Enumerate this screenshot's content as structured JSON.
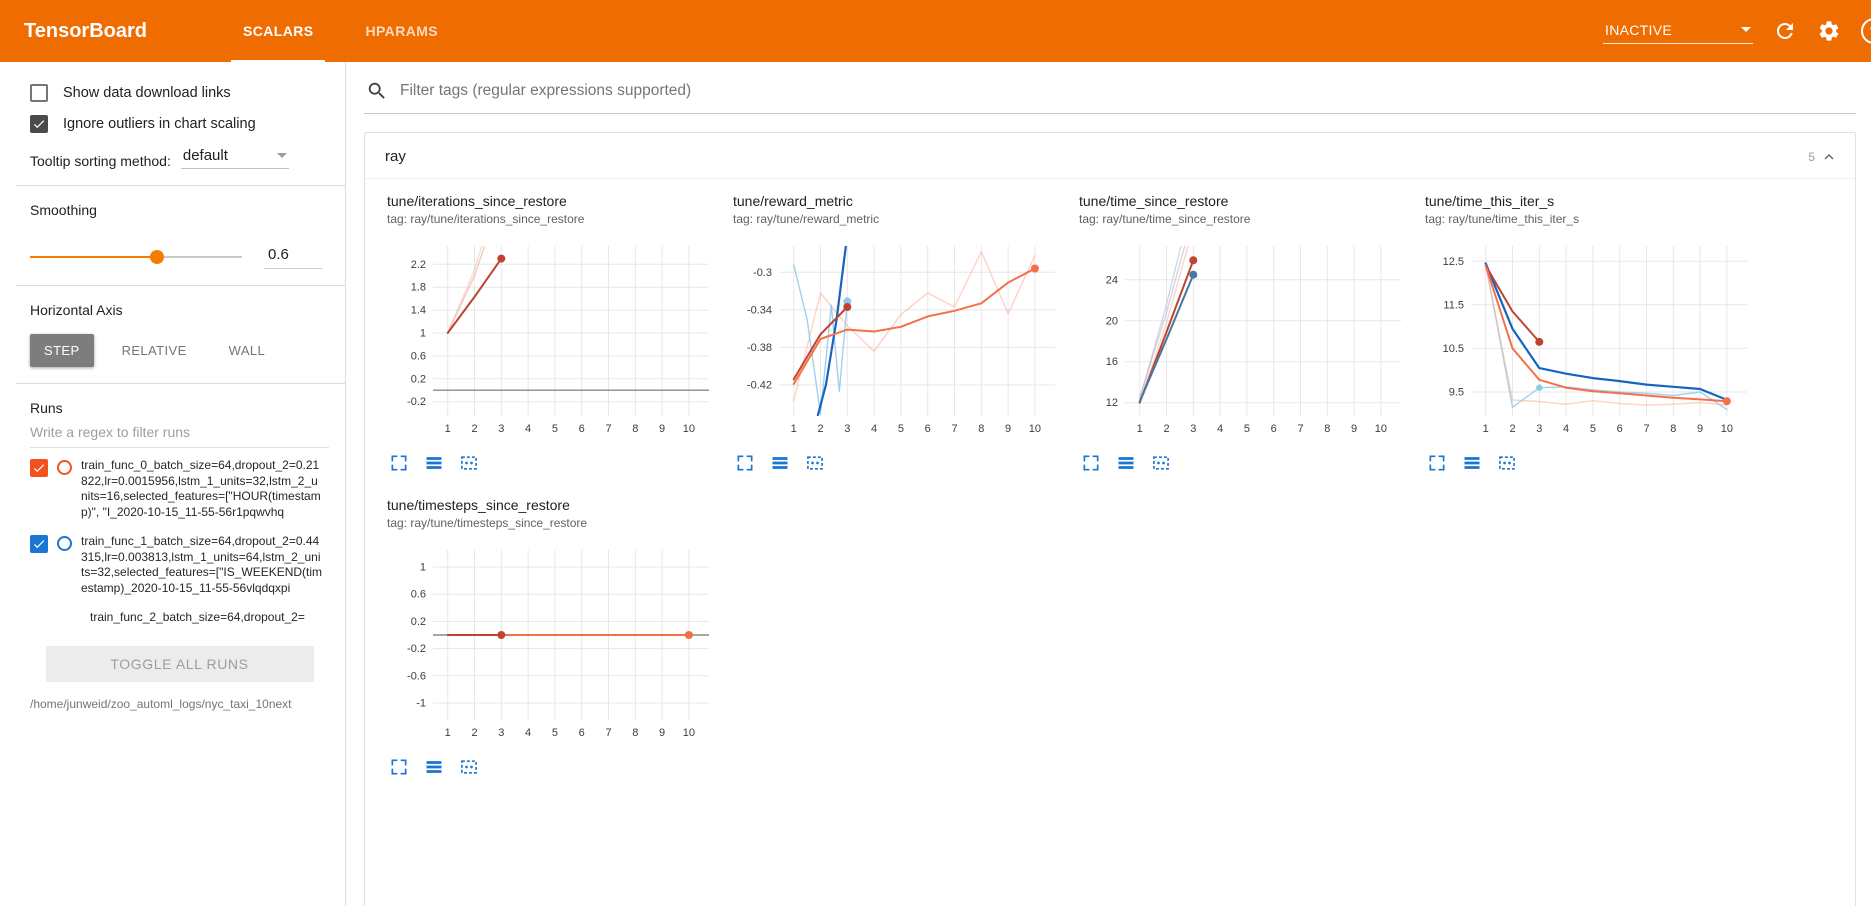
{
  "header": {
    "title": "TensorBoard",
    "tabs": [
      {
        "label": "SCALARS",
        "active": true
      },
      {
        "label": "HPARAMS",
        "active": false
      }
    ],
    "status": "INACTIVE",
    "accent_color": "#ef6c00"
  },
  "sidebar": {
    "checkboxes": [
      {
        "label": "Show data download links",
        "checked": false
      },
      {
        "label": "Ignore outliers in chart scaling",
        "checked": true
      }
    ],
    "tooltip_sorting": {
      "label": "Tooltip sorting method:",
      "value": "default"
    },
    "smoothing": {
      "label": "Smoothing",
      "value": "0.6",
      "min": 0,
      "max": 1
    },
    "horizontal_axis": {
      "label": "Horizontal Axis",
      "options": [
        "STEP",
        "RELATIVE",
        "WALL"
      ],
      "selected": "STEP"
    },
    "runs": {
      "label": "Runs",
      "filter_placeholder": "Write a regex to filter runs",
      "items": [
        {
          "label": "train_func_0_batch_size=64,dropout_2=0.21822,lr=0.0015956,lstm_1_units=32,lstm_2_units=16,selected_features=[\"HOUR(timestamp)\", \"I_2020-10-15_11-55-56r1pqwvhq",
          "checked": true,
          "color": "#f4511e"
        },
        {
          "label": "train_func_1_batch_size=64,dropout_2=0.44315,lr=0.003813,lstm_1_units=64,lstm_2_units=32,selected_features=[\"IS_WEEKEND(timestamp)_2020-10-15_11-55-56vlqdqxpi",
          "checked": true,
          "color": "#1976d2"
        },
        {
          "label": "train_func_2_batch_size=64,dropout_2=",
          "checked": null,
          "color": ""
        }
      ],
      "toggle_all_label": "TOGGLE ALL RUNS",
      "log_path": "/home/junweid/zoo_automl_logs/nyc_taxi_10next"
    }
  },
  "main": {
    "filter_placeholder": "Filter tags (regular expressions supported)",
    "group": {
      "name": "ray",
      "count": "5"
    }
  },
  "chart_data": [
    {
      "type": "line",
      "title": "tune/iterations_since_restore",
      "tag": "ray/tune/iterations_since_restore",
      "xlim": [
        0.45,
        10.75
      ],
      "ylim": [
        -0.45,
        2.52
      ],
      "xticks": [
        1,
        2,
        3,
        4,
        5,
        6,
        7,
        8,
        9,
        10
      ],
      "yticks": [
        -0.2,
        0.2,
        0.6,
        1,
        1.4,
        1.8,
        2.2
      ],
      "zero_line": true,
      "series": [
        {
          "name": "run0-raw",
          "color": "#e8a08e",
          "opacity": 0.55,
          "width": 1.4,
          "points": [
            [
              1,
              1
            ],
            [
              2,
              2
            ],
            [
              2.8,
              3.1
            ]
          ]
        },
        {
          "name": "run2-raw",
          "color": "#f2b5a0",
          "opacity": 0.5,
          "width": 1.4,
          "points": [
            [
              1,
              1
            ],
            [
              2,
              2.1
            ],
            [
              2.7,
              3.2
            ]
          ]
        },
        {
          "name": "run0-smoothed",
          "color": "#bf4430",
          "width": 2,
          "points": [
            [
              1,
              1
            ],
            [
              2,
              1.63
            ],
            [
              3,
              2.3
            ]
          ],
          "end_dot": true
        }
      ]
    },
    {
      "type": "line",
      "title": "tune/reward_metric",
      "tag": "ray/tune/reward_metric",
      "xlim": [
        0.45,
        10.75
      ],
      "ylim": [
        -0.453,
        -0.272
      ],
      "xticks": [
        1,
        2,
        3,
        4,
        5,
        6,
        7,
        8,
        9,
        10
      ],
      "yticks": [
        -0.42,
        -0.38,
        -0.34,
        -0.3
      ],
      "zero_line": false,
      "series": [
        {
          "name": "run2-raw",
          "color": "#ffab91",
          "opacity": 0.55,
          "width": 1.4,
          "points": [
            [
              1,
              -0.437
            ],
            [
              2,
              -0.322
            ],
            [
              3,
              -0.357
            ],
            [
              4,
              -0.384
            ],
            [
              5,
              -0.345
            ],
            [
              6,
              -0.322
            ],
            [
              7,
              -0.337
            ],
            [
              8,
              -0.278
            ],
            [
              9,
              -0.344
            ],
            [
              10,
              -0.282
            ]
          ]
        },
        {
          "name": "run1-raw",
          "color": "#8fc9e8",
          "opacity": 0.85,
          "width": 1.4,
          "points": [
            [
              1,
              -0.292
            ],
            [
              1.5,
              -0.35
            ],
            [
              2,
              -0.451
            ],
            [
              2.4,
              -0.335
            ],
            [
              2.7,
              -0.427
            ],
            [
              3,
              -0.331
            ]
          ],
          "end_dot": true
        },
        {
          "name": "run1-smoothed",
          "color": "#1565c0",
          "width": 2.2,
          "points": [
            [
              1.9,
              -0.452
            ],
            [
              2.2,
              -0.42
            ],
            [
              2.6,
              -0.35
            ],
            [
              3,
              -0.26
            ]
          ]
        },
        {
          "name": "run0-smoothed",
          "color": "#bf4430",
          "width": 2,
          "points": [
            [
              1,
              -0.414
            ],
            [
              2,
              -0.366
            ],
            [
              3,
              -0.337
            ]
          ],
          "end_dot": true
        },
        {
          "name": "run2-smoothed",
          "color": "#f4704b",
          "width": 2,
          "points": [
            [
              1,
              -0.419
            ],
            [
              2,
              -0.371
            ],
            [
              3,
              -0.361
            ],
            [
              4,
              -0.363
            ],
            [
              5,
              -0.358
            ],
            [
              6,
              -0.347
            ],
            [
              7,
              -0.341
            ],
            [
              8,
              -0.333
            ],
            [
              9,
              -0.311
            ],
            [
              10,
              -0.296
            ]
          ],
          "end_dot": true
        }
      ]
    },
    {
      "type": "line",
      "title": "tune/time_since_restore",
      "tag": "ray/tune/time_since_restore",
      "xlim": [
        0.45,
        10.75
      ],
      "ylim": [
        10.7,
        27.3
      ],
      "xticks": [
        1,
        2,
        3,
        4,
        5,
        6,
        7,
        8,
        9,
        10
      ],
      "yticks": [
        12,
        16,
        20,
        24
      ],
      "zero_line": false,
      "series": [
        {
          "name": "raw-a",
          "color": "#b3a8c9",
          "opacity": 0.5,
          "width": 1.4,
          "points": [
            [
              1,
              12.5
            ],
            [
              2,
              20.8
            ],
            [
              2.8,
              28.5
            ]
          ]
        },
        {
          "name": "raw-b",
          "color": "#9fb6c9",
          "opacity": 0.5,
          "width": 1.4,
          "points": [
            [
              1,
              12.3
            ],
            [
              2,
              21.6
            ],
            [
              2.7,
              29
            ]
          ]
        },
        {
          "name": "raw-c",
          "color": "#f2b5a0",
          "opacity": 0.55,
          "width": 1.4,
          "points": [
            [
              1,
              12
            ],
            [
              2,
              19.8
            ],
            [
              2.9,
              28.2
            ]
          ]
        },
        {
          "name": "run0-smoothed",
          "color": "#bf4430",
          "width": 2,
          "points": [
            [
              1,
              12
            ],
            [
              2,
              18.9
            ],
            [
              3,
              25.9
            ]
          ],
          "end_dot": true
        },
        {
          "name": "run1-smoothed",
          "color": "#4878a0",
          "width": 2,
          "points": [
            [
              1,
              12.1
            ],
            [
              2,
              18.2
            ],
            [
              3,
              24.5
            ]
          ],
          "end_dot": true
        }
      ]
    },
    {
      "type": "line",
      "title": "tune/time_this_iter_s",
      "tag": "ray/tune/time_this_iter_s",
      "xlim": [
        0.45,
        10.75
      ],
      "ylim": [
        8.95,
        12.85
      ],
      "xticks": [
        1,
        2,
        3,
        4,
        5,
        6,
        7,
        8,
        9,
        10
      ],
      "yticks": [
        9.5,
        10.5,
        11.5,
        12.5
      ],
      "zero_line": false,
      "series": [
        {
          "name": "run1-raw",
          "color": "#8fc9e8",
          "opacity": 0.8,
          "width": 1.4,
          "points": [
            [
              1,
              12.45
            ],
            [
              2,
              9.15
            ],
            [
              3,
              9.6
            ],
            [
              4,
              9.62
            ],
            [
              5,
              9.55
            ],
            [
              6,
              9.5
            ],
            [
              7,
              9.47
            ],
            [
              8,
              9.42
            ],
            [
              9,
              9.5
            ],
            [
              10,
              9.1
            ]
          ],
          "dots": [
            [
              3,
              9.6
            ]
          ]
        },
        {
          "name": "run2-raw",
          "color": "#ffab91",
          "opacity": 0.55,
          "width": 1.4,
          "points": [
            [
              1,
              12.4
            ],
            [
              2,
              9.32
            ],
            [
              3,
              9.28
            ],
            [
              4,
              9.22
            ],
            [
              5,
              9.3
            ],
            [
              6,
              9.24
            ],
            [
              7,
              9.2
            ],
            [
              8,
              9.22
            ],
            [
              9,
              9.26
            ],
            [
              10,
              9.2
            ]
          ]
        },
        {
          "name": "run1-smoothed",
          "color": "#1565c0",
          "width": 2.2,
          "points": [
            [
              1,
              12.45
            ],
            [
              2,
              10.95
            ],
            [
              3,
              10.05
            ],
            [
              4,
              9.92
            ],
            [
              5,
              9.82
            ],
            [
              6,
              9.75
            ],
            [
              7,
              9.67
            ],
            [
              8,
              9.62
            ],
            [
              9,
              9.57
            ],
            [
              10,
              9.32
            ]
          ]
        },
        {
          "name": "run0-smoothed",
          "color": "#bf4430",
          "width": 2,
          "points": [
            [
              1,
              12.4
            ],
            [
              2,
              11.35
            ],
            [
              3,
              10.65
            ]
          ],
          "end_dot": true
        },
        {
          "name": "run2-smoothed",
          "color": "#f4704b",
          "width": 2,
          "points": [
            [
              1,
              12.4
            ],
            [
              2,
              10.5
            ],
            [
              3,
              9.78
            ],
            [
              4,
              9.6
            ],
            [
              5,
              9.52
            ],
            [
              6,
              9.47
            ],
            [
              7,
              9.42
            ],
            [
              8,
              9.37
            ],
            [
              9,
              9.33
            ],
            [
              10,
              9.29
            ]
          ],
          "end_dot": true
        }
      ]
    },
    {
      "type": "line",
      "title": "tune/timesteps_since_restore",
      "tag": "ray/tune/timesteps_since_restore",
      "xlim": [
        0.45,
        10.75
      ],
      "ylim": [
        -1.25,
        1.25
      ],
      "xticks": [
        1,
        2,
        3,
        4,
        5,
        6,
        7,
        8,
        9,
        10
      ],
      "yticks": [
        -1,
        -0.6,
        -0.2,
        0.2,
        0.6,
        1
      ],
      "zero_line": true,
      "series": [
        {
          "name": "run1-smoothed",
          "color": "#1565c0",
          "width": 2,
          "points": [
            [
              1,
              0
            ],
            [
              10,
              0
            ]
          ]
        },
        {
          "name": "run2-smoothed",
          "color": "#f4704b",
          "width": 2,
          "points": [
            [
              1,
              0
            ],
            [
              10,
              0
            ]
          ],
          "end_dot": true
        },
        {
          "name": "run0-smoothed",
          "color": "#bf4430",
          "width": 2,
          "points": [
            [
              1,
              0
            ],
            [
              3,
              0
            ]
          ],
          "end_dot": true
        }
      ]
    }
  ]
}
